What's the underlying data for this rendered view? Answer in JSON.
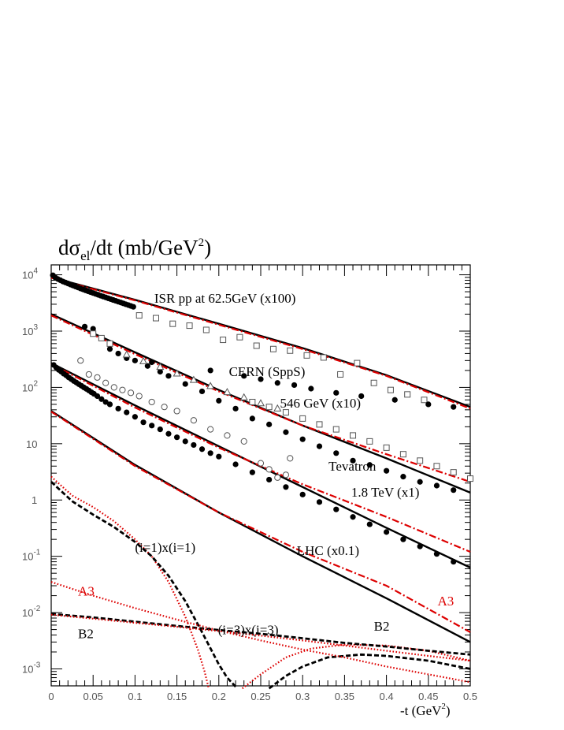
{
  "chart_data": {
    "type": "scatter",
    "title": "dσel/dt (mb/GeV²)",
    "title_parts": {
      "main": "dσ",
      "sub": "el",
      "rest": "/dt  (mb/GeV",
      "sup": "2",
      "end": ")"
    },
    "xlabel": "-t  (GeV²)",
    "xlabel_parts": {
      "main": "-t  (GeV",
      "sup": "2",
      "end": ")"
    },
    "xlim": [
      0,
      0.5
    ],
    "ylim": [
      0.0005,
      15000
    ],
    "yscale": "log",
    "grid": false,
    "x_ticks": [
      {
        "value": 0,
        "label": "0"
      },
      {
        "value": 0.05,
        "label": "0.05"
      },
      {
        "value": 0.1,
        "label": "0.1"
      },
      {
        "value": 0.15,
        "label": "0.15"
      },
      {
        "value": 0.2,
        "label": "0.2"
      },
      {
        "value": 0.25,
        "label": "0.25"
      },
      {
        "value": 0.3,
        "label": "0.3"
      },
      {
        "value": 0.35,
        "label": "0.35"
      },
      {
        "value": 0.4,
        "label": "0.4"
      },
      {
        "value": 0.45,
        "label": "0.45"
      },
      {
        "value": 0.5,
        "label": "0.5"
      }
    ],
    "y_ticks": [
      {
        "value": 10000,
        "base": "10",
        "exp": "4"
      },
      {
        "value": 1000,
        "base": "10",
        "exp": "3"
      },
      {
        "value": 100,
        "base": "10",
        "exp": "2"
      },
      {
        "value": 10,
        "base": "10",
        "exp": ""
      },
      {
        "value": 1,
        "base": "1",
        "exp": ""
      },
      {
        "value": 0.1,
        "base": "10",
        "exp": "-1"
      },
      {
        "value": 0.01,
        "base": "10",
        "exp": "-2"
      },
      {
        "value": 0.001,
        "base": "10",
        "exp": "-3"
      }
    ],
    "annotations": [
      {
        "text": "ISR pp at 62.5GeV   (x100)",
        "x": 0.123,
        "y": 3200,
        "color": "#000000"
      },
      {
        "text": "CERN (SppS)",
        "x": 0.212,
        "y": 160,
        "color": "#000000"
      },
      {
        "text": "546 GeV  (x10)",
        "x": 0.273,
        "y": 44,
        "color": "#000000"
      },
      {
        "text": "Tevatron",
        "x": 0.331,
        "y": 3.3,
        "color": "#000000"
      },
      {
        "text": "1.8 TeV (x1)",
        "x": 0.358,
        "y": 1.15,
        "color": "#000000"
      },
      {
        "text": "LHC (x0.1)",
        "x": 0.293,
        "y": 0.105,
        "color": "#000000"
      },
      {
        "text": "(i=1)x(i=1)",
        "x": 0.1,
        "y": 0.12,
        "color": "#000000"
      },
      {
        "text": "(i=3)x(i=3)",
        "x": 0.199,
        "y": 0.0041,
        "color": "#000000"
      },
      {
        "text": "A3",
        "x": 0.032,
        "y": 0.02,
        "color": "#dd0000"
      },
      {
        "text": "B2",
        "x": 0.032,
        "y": 0.0035,
        "color": "#000000"
      },
      {
        "text": "B2",
        "x": 0.385,
        "y": 0.0048,
        "color": "#000000"
      },
      {
        "text": "A3",
        "x": 0.461,
        "y": 0.0135,
        "color": "#dd0000"
      }
    ],
    "series": [
      {
        "style": "solid",
        "color": "#000000",
        "x": [
          0,
          0.1,
          0.2,
          0.3,
          0.4,
          0.5
        ],
        "y": [
          9000,
          3600,
          1350,
          500,
          165,
          45
        ]
      },
      {
        "style": "dashdot",
        "color": "#dd0000",
        "x": [
          0,
          0.1,
          0.2,
          0.3,
          0.4,
          0.5
        ],
        "y": [
          8800,
          3500,
          1300,
          480,
          160,
          42
        ]
      },
      {
        "style": "solid",
        "color": "#000000",
        "x": [
          0,
          0.1,
          0.2,
          0.3,
          0.4,
          0.5
        ],
        "y": [
          2000,
          420,
          90,
          21,
          5.5,
          1.35
        ]
      },
      {
        "style": "dashdot",
        "color": "#dd0000",
        "x": [
          0,
          0.1,
          0.2,
          0.3,
          0.4,
          0.5
        ],
        "y": [
          1900,
          390,
          85,
          21,
          6.5,
          2.1
        ]
      },
      {
        "style": "solid",
        "color": "#000000",
        "x": [
          0,
          0.1,
          0.2,
          0.3,
          0.4,
          0.5
        ],
        "y": [
          270,
          48,
          9,
          1.7,
          0.32,
          0.063
        ]
      },
      {
        "style": "dashdot",
        "color": "#dd0000",
        "x": [
          0,
          0.1,
          0.2,
          0.3,
          0.4,
          0.5
        ],
        "y": [
          260,
          44,
          8.5,
          1.9,
          0.5,
          0.12
        ]
      },
      {
        "style": "solid",
        "color": "#000000",
        "x": [
          0,
          0.1,
          0.2,
          0.3,
          0.4,
          0.5
        ],
        "y": [
          38,
          4.2,
          0.6,
          0.1,
          0.018,
          0.003
        ]
      },
      {
        "style": "dashdot",
        "color": "#dd0000",
        "x": [
          0,
          0.1,
          0.2,
          0.3,
          0.4,
          0.5
        ],
        "y": [
          37,
          4,
          0.6,
          0.12,
          0.03,
          0.0045
        ]
      },
      {
        "style": "dotted",
        "color": "#dd0000",
        "x": [
          0,
          0.025,
          0.05,
          0.075,
          0.1,
          0.12,
          0.14,
          0.16,
          0.175,
          0.183,
          0.188
        ],
        "y": [
          2.6,
          1.2,
          0.75,
          0.42,
          0.2,
          0.1,
          0.035,
          0.0085,
          0.0022,
          0.0009,
          0.00045
        ]
      },
      {
        "style": "dashed",
        "color": "#000000",
        "x": [
          0,
          0.025,
          0.05,
          0.075,
          0.1,
          0.12,
          0.14,
          0.16,
          0.18,
          0.2,
          0.21,
          0.222
        ],
        "y": [
          2.1,
          0.95,
          0.55,
          0.33,
          0.18,
          0.1,
          0.045,
          0.016,
          0.0045,
          0.0012,
          0.0007,
          0.00045
        ]
      },
      {
        "style": "dotted",
        "color": "#dd0000",
        "x": [
          0.228,
          0.25,
          0.28,
          0.31,
          0.35,
          0.4,
          0.45,
          0.5
        ],
        "y": [
          0.00045,
          0.0008,
          0.0016,
          0.0023,
          0.0027,
          0.0026,
          0.0021,
          0.0014
        ]
      },
      {
        "style": "dashed",
        "color": "#000000",
        "x": [
          0.26,
          0.28,
          0.3,
          0.33,
          0.37,
          0.4,
          0.45,
          0.5
        ],
        "y": [
          0.00045,
          0.00075,
          0.0011,
          0.0016,
          0.0018,
          0.0017,
          0.0014,
          0.001
        ]
      },
      {
        "style": "dotted",
        "color": "#dd0000",
        "x": [
          0,
          0.05,
          0.1,
          0.15,
          0.2,
          0.25,
          0.3,
          0.35,
          0.4,
          0.45,
          0.5
        ],
        "y": [
          0.035,
          0.02,
          0.012,
          0.0075,
          0.0048,
          0.0032,
          0.0022,
          0.0016,
          0.0011,
          0.0008,
          0.00058
        ]
      },
      {
        "style": "dashed",
        "color": "#000000",
        "x": [
          0,
          0.05,
          0.1,
          0.15,
          0.2,
          0.25,
          0.3,
          0.35,
          0.4,
          0.45,
          0.5
        ],
        "y": [
          0.0095,
          0.0082,
          0.0069,
          0.0058,
          0.0049,
          0.0042,
          0.0035,
          0.0029,
          0.0025,
          0.0021,
          0.0018
        ]
      },
      {
        "style": "dotted",
        "color": "#dd0000",
        "x": [
          0,
          0.05,
          0.1,
          0.15,
          0.2,
          0.25,
          0.3,
          0.35,
          0.4,
          0.45,
          0.5
        ],
        "y": [
          0.0092,
          0.0078,
          0.0066,
          0.0056,
          0.0047,
          0.0039,
          0.0032,
          0.0026,
          0.0021,
          0.0017,
          0.0014
        ]
      }
    ],
    "points": [
      {
        "marker": "filled-circle",
        "x": [
          0.002,
          0.005,
          0.008,
          0.011,
          0.014,
          0.017,
          0.02,
          0.023,
          0.026,
          0.029,
          0.032,
          0.035,
          0.038,
          0.041,
          0.044,
          0.047,
          0.05,
          0.053,
          0.056,
          0.059,
          0.062,
          0.065,
          0.068,
          0.071,
          0.074,
          0.077,
          0.08,
          0.083,
          0.086,
          0.089,
          0.092,
          0.095,
          0.098
        ],
        "y": [
          9800,
          8900,
          8400,
          8000,
          7600,
          7300,
          7000,
          6700,
          6450,
          6200,
          5950,
          5700,
          5500,
          5300,
          5100,
          4920,
          4750,
          4580,
          4420,
          4260,
          4110,
          3970,
          3830,
          3700,
          3570,
          3450,
          3330,
          3220,
          3110,
          3000,
          2900,
          2800,
          2700
        ]
      },
      {
        "marker": "open-square",
        "x": [
          0.105,
          0.125,
          0.145,
          0.165,
          0.185,
          0.205,
          0.225,
          0.245,
          0.265,
          0.285,
          0.305,
          0.325,
          0.345,
          0.365,
          0.385,
          0.405,
          0.425,
          0.445
        ],
        "y": [
          1900,
          1700,
          1350,
          1250,
          1050,
          700,
          780,
          550,
          480,
          450,
          370,
          340,
          170,
          270,
          120,
          90,
          75,
          60
        ]
      },
      {
        "marker": "filled-circle",
        "x": [
          0.04,
          0.05,
          0.12,
          0.19,
          0.23,
          0.25,
          0.27,
          0.29,
          0.31,
          0.34,
          0.37,
          0.41,
          0.45,
          0.48
        ],
        "y": [
          1200,
          1100,
          280,
          200,
          160,
          140,
          120,
          110,
          95,
          80,
          70,
          60,
          50,
          45
        ]
      },
      {
        "marker": "filled-circle",
        "x": [
          0.07,
          0.08,
          0.09,
          0.1,
          0.115,
          0.13,
          0.14,
          0.16,
          0.18,
          0.2,
          0.22,
          0.24,
          0.26,
          0.28,
          0.3,
          0.32,
          0.34,
          0.36,
          0.38,
          0.4,
          0.42,
          0.44,
          0.46,
          0.48
        ],
        "y": [
          480,
          400,
          330,
          300,
          240,
          190,
          160,
          115,
          85,
          58,
          42,
          28,
          22,
          16,
          12,
          9,
          6.8,
          5,
          4.2,
          3.3,
          2.6,
          2.1,
          1.8,
          1.5
        ]
      },
      {
        "marker": "open-triangle",
        "x": [
          0.09,
          0.11,
          0.13,
          0.15,
          0.17,
          0.19,
          0.21,
          0.23,
          0.25,
          0.27
        ],
        "y": [
          380,
          290,
          230,
          175,
          135,
          105,
          82,
          66,
          52,
          42
        ]
      },
      {
        "marker": "open-square",
        "x": [
          0.05,
          0.06,
          0.07,
          0.24,
          0.26,
          0.28,
          0.3,
          0.32,
          0.34,
          0.36,
          0.38,
          0.4,
          0.42,
          0.44,
          0.46,
          0.48,
          0.5
        ],
        "y": [
          900,
          750,
          600,
          55,
          45,
          36,
          28,
          22,
          18,
          14,
          11,
          8.5,
          6.5,
          5,
          4,
          3.1,
          2.4
        ]
      },
      {
        "marker": "filled-circle",
        "x": [
          0.003,
          0.006,
          0.009,
          0.012,
          0.015,
          0.018,
          0.021,
          0.024,
          0.027,
          0.03,
          0.033,
          0.036,
          0.039,
          0.042,
          0.045,
          0.048,
          0.051,
          0.055,
          0.06,
          0.065,
          0.07,
          0.08,
          0.09,
          0.1,
          0.11,
          0.12,
          0.13,
          0.14,
          0.15,
          0.16,
          0.17,
          0.18,
          0.19,
          0.2,
          0.22,
          0.24,
          0.26,
          0.28,
          0.3,
          0.32,
          0.34,
          0.36,
          0.38,
          0.4,
          0.42,
          0.44,
          0.46,
          0.48
        ],
        "y": [
          250,
          225,
          205,
          190,
          175,
          163,
          150,
          140,
          130,
          122,
          114,
          107,
          100,
          94,
          88,
          82,
          77,
          70,
          62,
          55,
          50,
          42,
          36,
          30,
          24,
          21,
          18,
          15,
          13,
          11,
          9.5,
          8,
          6.8,
          5.9,
          4.3,
          3.1,
          2.3,
          1.7,
          1.25,
          0.92,
          0.68,
          0.5,
          0.37,
          0.27,
          0.2,
          0.15,
          0.11,
          0.08
        ]
      },
      {
        "marker": "open-circle",
        "x": [
          0.035,
          0.045,
          0.055,
          0.065,
          0.075,
          0.085,
          0.095,
          0.105,
          0.12,
          0.135,
          0.15,
          0.17,
          0.19,
          0.21,
          0.23,
          0.25,
          0.26,
          0.27,
          0.28,
          0.285
        ],
        "y": [
          300,
          170,
          150,
          120,
          100,
          90,
          80,
          70,
          55,
          45,
          38,
          26,
          18,
          14,
          11,
          4.5,
          3.5,
          2.5,
          2.8,
          5.5
        ]
      }
    ]
  }
}
